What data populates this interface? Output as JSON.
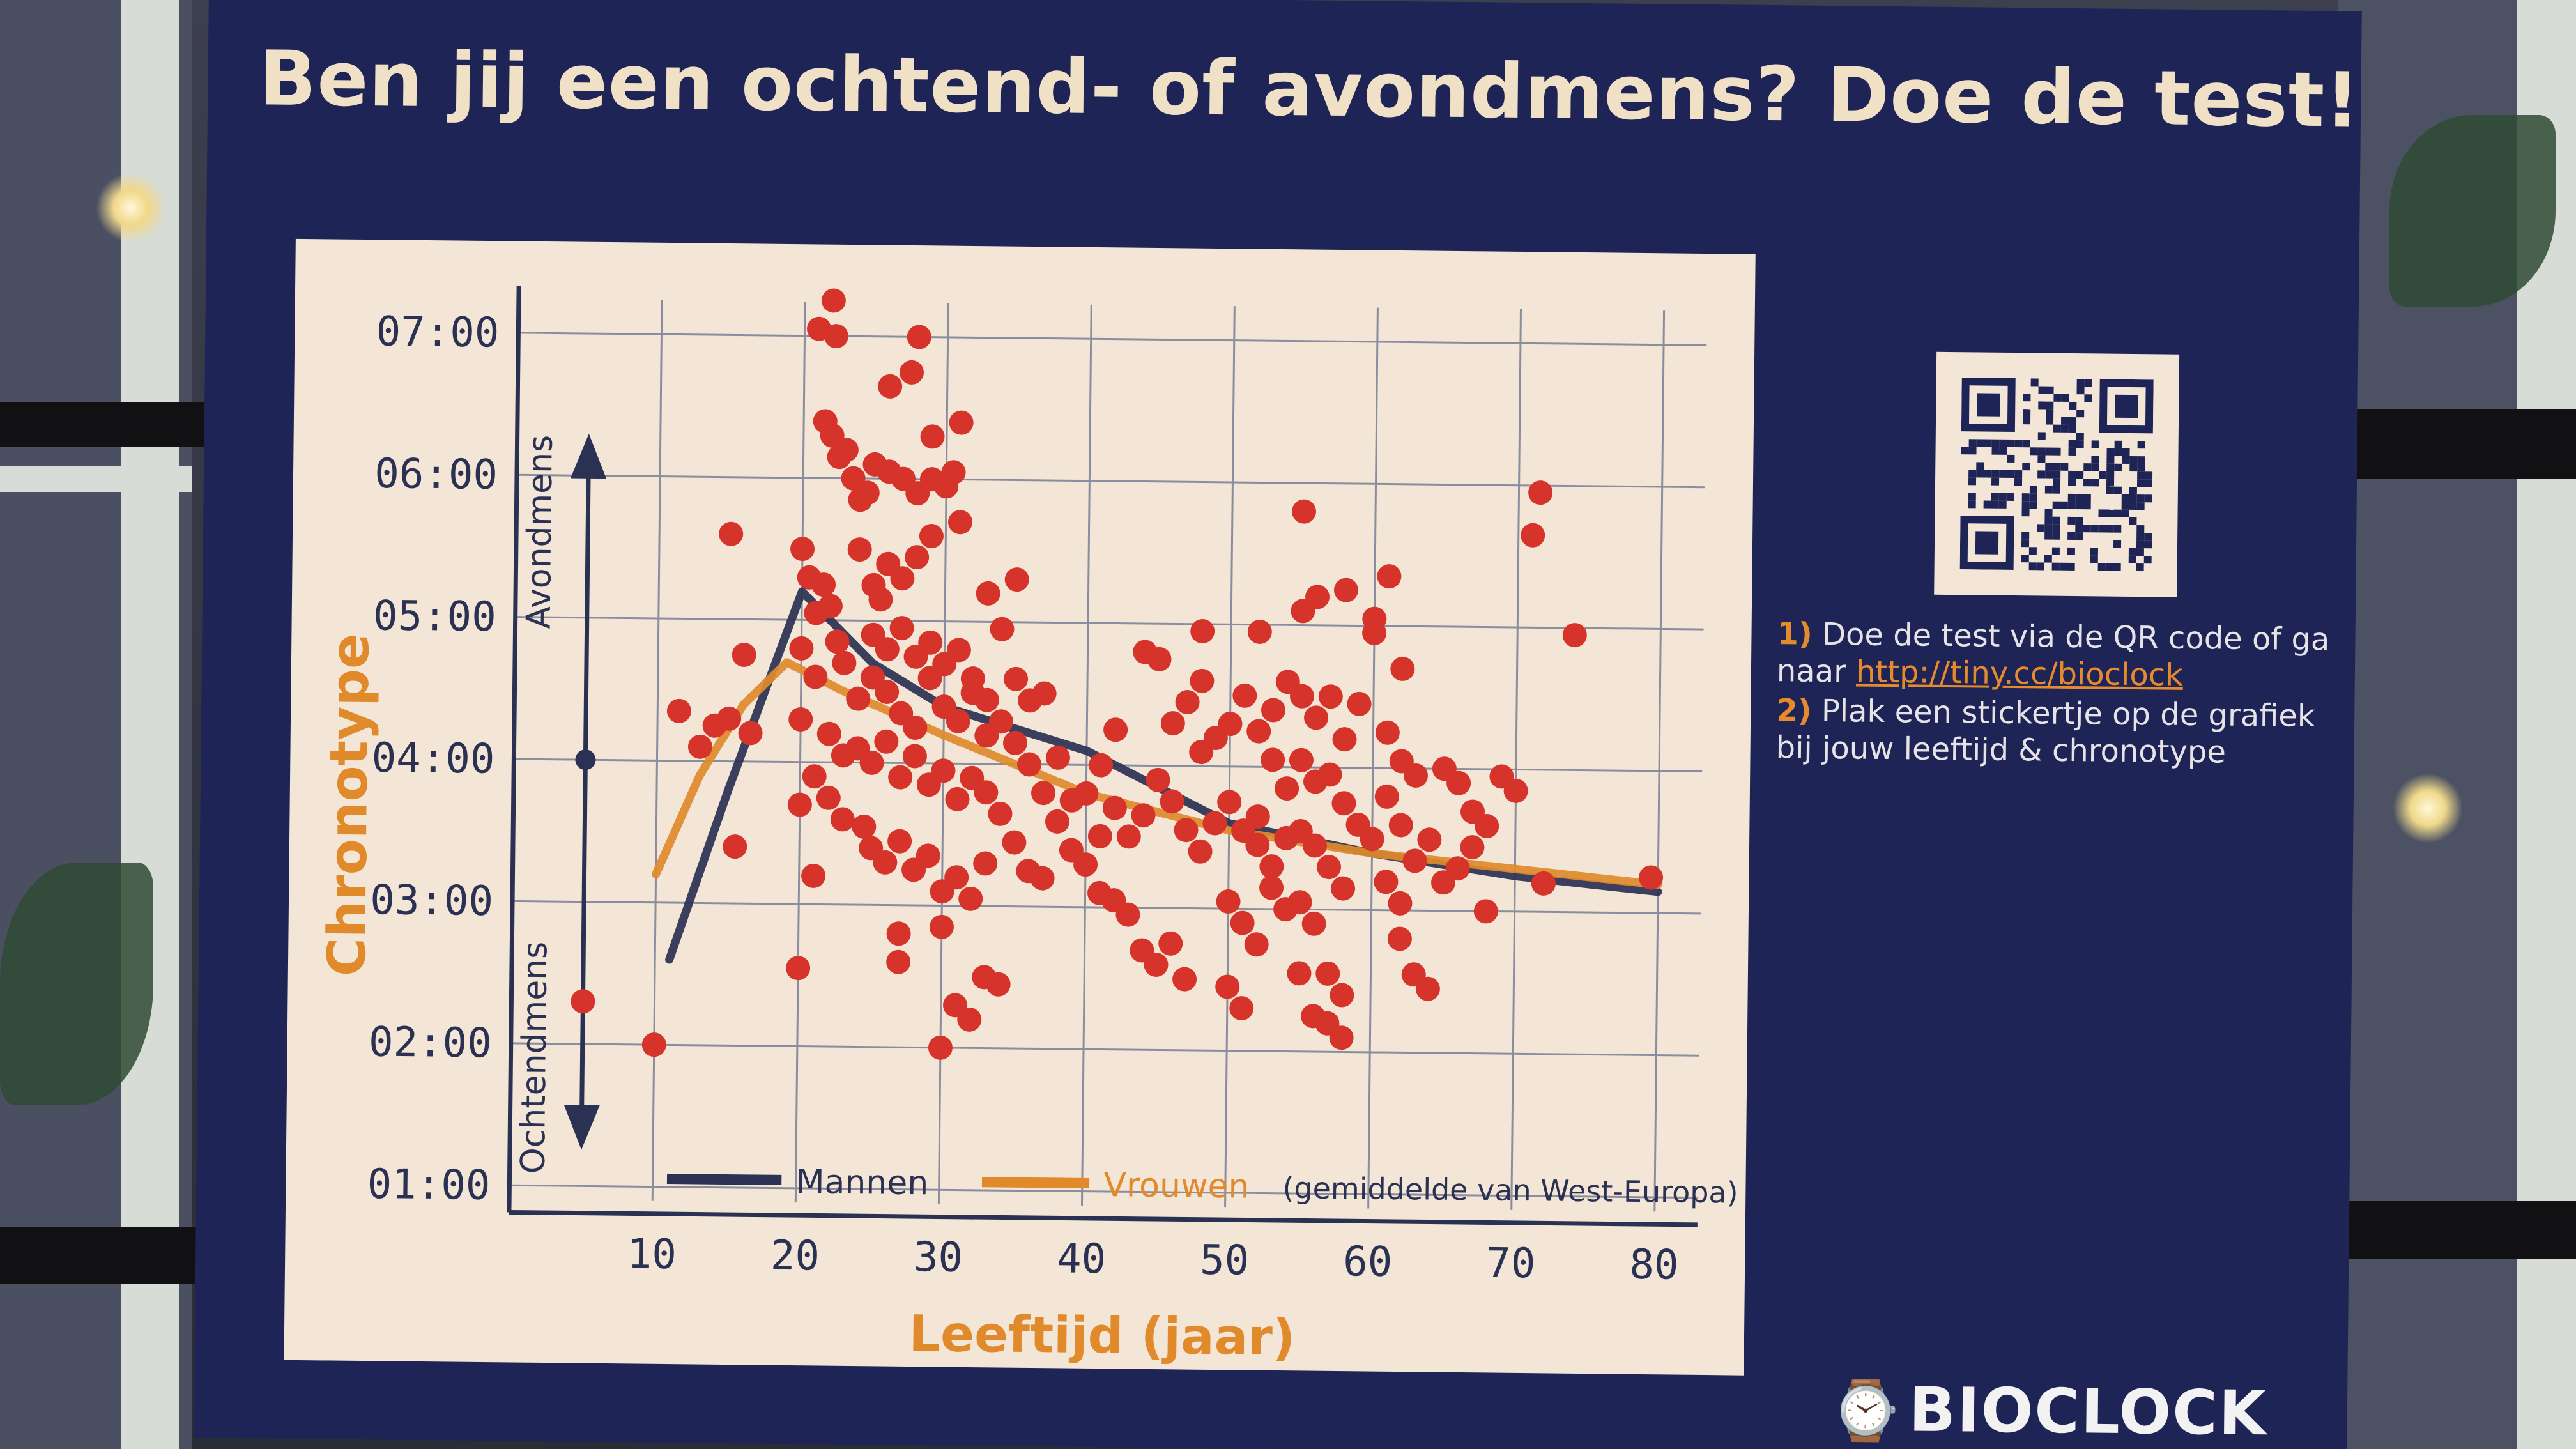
{
  "poster": {
    "title": "Ben jij een ochtend- of avondmens? Doe de test!",
    "steps": [
      {
        "num": "1)",
        "text": "Doe de test via de QR code of ga naar ",
        "link": "http://tiny.cc/bioclock"
      },
      {
        "num": "2)",
        "text": "Plak een stickertje op de grafiek bij jouw leeftijd & chronotype"
      }
    ],
    "brand": "BIOCLOCK"
  },
  "chart_data": {
    "type": "scatter",
    "xlabel": "Leeftijd (jaar)",
    "ylabel": "Chronotype",
    "xticks": [
      10,
      20,
      30,
      40,
      50,
      60,
      70,
      80
    ],
    "yticks": [
      "01:00",
      "02:00",
      "03:00",
      "04:00",
      "05:00",
      "06:00",
      "07:00"
    ],
    "xlim": [
      0,
      83
    ],
    "ylim": [
      0.9,
      7.15
    ],
    "arrow_labels": {
      "up": "Avondmens",
      "down": "Ochtendmens"
    },
    "legend": {
      "note": "(gemiddelde van West-Europa)"
    },
    "colors": {
      "men": "#2b3152",
      "women": "#e08a2b",
      "points": "#d6332a"
    },
    "series": [
      {
        "name": "Mannen",
        "x": [
          11,
          15,
          20,
          25,
          30,
          40,
          50,
          60,
          70,
          80
        ],
        "y": [
          2.6,
          3.8,
          5.2,
          4.7,
          4.4,
          4.1,
          3.6,
          3.4,
          3.25,
          3.15
        ]
      },
      {
        "name": "Vrouwen",
        "x": [
          10,
          13,
          16,
          19,
          23,
          30,
          40,
          50,
          60,
          70,
          80
        ],
        "y": [
          3.2,
          3.9,
          4.4,
          4.7,
          4.5,
          4.2,
          3.8,
          3.55,
          3.4,
          3.3,
          3.2
        ]
      }
    ],
    "points": [
      [
        10,
        2
      ],
      [
        5,
        2.3
      ],
      [
        11.5,
        4.35
      ],
      [
        13,
        4.1
      ],
      [
        14,
        4.25
      ],
      [
        15,
        4.3
      ],
      [
        15.5,
        3.4
      ],
      [
        16,
        4.75
      ],
      [
        16.5,
        4.2
      ],
      [
        15,
        5.6
      ],
      [
        20,
        5.5
      ],
      [
        20.5,
        5.3
      ],
      [
        21,
        5.05
      ],
      [
        21.5,
        5.25
      ],
      [
        22,
        5.1
      ],
      [
        22.5,
        4.85
      ],
      [
        23,
        4.7
      ],
      [
        22,
        7.25
      ],
      [
        21,
        7.05
      ],
      [
        22.2,
        7
      ],
      [
        21.5,
        6.4
      ],
      [
        22,
        6.3
      ],
      [
        23,
        6.2
      ],
      [
        22.5,
        6.15
      ],
      [
        23.5,
        6
      ],
      [
        24,
        5.85
      ],
      [
        25,
        6.1
      ],
      [
        24.5,
        5.9
      ],
      [
        26,
        6.05
      ],
      [
        27,
        6
      ],
      [
        28,
        5.9
      ],
      [
        29,
        6
      ],
      [
        30,
        5.95
      ],
      [
        30.5,
        6.05
      ],
      [
        26,
        6.65
      ],
      [
        27.5,
        6.75
      ],
      [
        28,
        7
      ],
      [
        29,
        6.3
      ],
      [
        31,
        6.4
      ],
      [
        27,
        5.3
      ],
      [
        26,
        5.4
      ],
      [
        28,
        5.45
      ],
      [
        29,
        5.6
      ],
      [
        24,
        5.5
      ],
      [
        25,
        5.25
      ],
      [
        25.5,
        5.15
      ],
      [
        31,
        5.7
      ],
      [
        33,
        5.2
      ],
      [
        35,
        5.3
      ],
      [
        34,
        4.95
      ],
      [
        20,
        4.8
      ],
      [
        21,
        4.6
      ],
      [
        20,
        4.3
      ],
      [
        22,
        4.2
      ],
      [
        23,
        4.05
      ],
      [
        24,
        4.1
      ],
      [
        21,
        3.9
      ],
      [
        20,
        3.7
      ],
      [
        22,
        3.75
      ],
      [
        23,
        3.6
      ],
      [
        24.5,
        3.55
      ],
      [
        25,
        3.4
      ],
      [
        26,
        3.3
      ],
      [
        27,
        3.45
      ],
      [
        28,
        3.25
      ],
      [
        29,
        3.35
      ],
      [
        30,
        3.1
      ],
      [
        31,
        3.2
      ],
      [
        32,
        3.05
      ],
      [
        33,
        3.3
      ],
      [
        24,
        4.45
      ],
      [
        25,
        4.6
      ],
      [
        26,
        4.5
      ],
      [
        27,
        4.35
      ],
      [
        28,
        4.25
      ],
      [
        29,
        4.6
      ],
      [
        30,
        4.4
      ],
      [
        31,
        4.3
      ],
      [
        32,
        4.5
      ],
      [
        33,
        4.2
      ],
      [
        25,
        4.9
      ],
      [
        26,
        4.8
      ],
      [
        27,
        4.95
      ],
      [
        28,
        4.75
      ],
      [
        29,
        4.85
      ],
      [
        30,
        4.7
      ],
      [
        31,
        4.8
      ],
      [
        32,
        4.6
      ],
      [
        33,
        4.45
      ],
      [
        34,
        4.3
      ],
      [
        25,
        4
      ],
      [
        26,
        4.15
      ],
      [
        27,
        3.9
      ],
      [
        28,
        4.05
      ],
      [
        29,
        3.85
      ],
      [
        30,
        3.95
      ],
      [
        31,
        3.75
      ],
      [
        32,
        3.9
      ],
      [
        33,
        3.8
      ],
      [
        34,
        3.65
      ],
      [
        35,
        4.6
      ],
      [
        36,
        4.45
      ],
      [
        37,
        4.5
      ],
      [
        35,
        4.15
      ],
      [
        36,
        4
      ],
      [
        37,
        3.8
      ],
      [
        38,
        3.6
      ],
      [
        39,
        3.4
      ],
      [
        35,
        3.45
      ],
      [
        36,
        3.25
      ],
      [
        21,
        3.2
      ],
      [
        20,
        2.55
      ],
      [
        27,
        2.6
      ],
      [
        27,
        2.8
      ],
      [
        30,
        2.85
      ],
      [
        31,
        2.3
      ],
      [
        30,
        2
      ],
      [
        33,
        2.5
      ],
      [
        34,
        2.45
      ],
      [
        32,
        2.2
      ],
      [
        40,
        3.8
      ],
      [
        41,
        4
      ],
      [
        42,
        3.7
      ],
      [
        43,
        3.5
      ],
      [
        44,
        3.65
      ],
      [
        45,
        3.9
      ],
      [
        46,
        3.75
      ],
      [
        47,
        3.55
      ],
      [
        48,
        3.4
      ],
      [
        40,
        3.3
      ],
      [
        41,
        3.1
      ],
      [
        42,
        3.05
      ],
      [
        43,
        2.95
      ],
      [
        44,
        2.7
      ],
      [
        45,
        2.6
      ],
      [
        46,
        2.75
      ],
      [
        47,
        2.5
      ],
      [
        44,
        4.8
      ],
      [
        45,
        4.75
      ],
      [
        48,
        4.6
      ],
      [
        46,
        4.3
      ],
      [
        47,
        4.45
      ],
      [
        48,
        4.1
      ],
      [
        49,
        4.2
      ],
      [
        50,
        4.3
      ],
      [
        51,
        4.5
      ],
      [
        52,
        4.25
      ],
      [
        53,
        4.4
      ],
      [
        54,
        4.6
      ],
      [
        49,
        3.6
      ],
      [
        50,
        3.75
      ],
      [
        51,
        3.55
      ],
      [
        52,
        3.45
      ],
      [
        53,
        3.3
      ],
      [
        54,
        3.5
      ],
      [
        50,
        3.05
      ],
      [
        51,
        2.9
      ],
      [
        52,
        2.75
      ],
      [
        50,
        2.45
      ],
      [
        51,
        2.3
      ],
      [
        55,
        5.8
      ],
      [
        56,
        5.2
      ],
      [
        55,
        4.5
      ],
      [
        56,
        4.35
      ],
      [
        57,
        4.5
      ],
      [
        58,
        4.2
      ],
      [
        59,
        4.45
      ],
      [
        55,
        4.05
      ],
      [
        56,
        3.9
      ],
      [
        57,
        3.95
      ],
      [
        58,
        3.75
      ],
      [
        59,
        3.6
      ],
      [
        55,
        3.55
      ],
      [
        56,
        3.45
      ],
      [
        57,
        3.3
      ],
      [
        58,
        3.15
      ],
      [
        55,
        3.05
      ],
      [
        56,
        2.9
      ],
      [
        57,
        2.55
      ],
      [
        58,
        2.4
      ],
      [
        57,
        2.2
      ],
      [
        56,
        2.25
      ],
      [
        58,
        2.1
      ],
      [
        55,
        2.55
      ],
      [
        54,
        3
      ],
      [
        53,
        3.15
      ],
      [
        52,
        3.65
      ],
      [
        54,
        3.85
      ],
      [
        53,
        4.05
      ],
      [
        52,
        4.95
      ],
      [
        60,
        4.95
      ],
      [
        61,
        5.35
      ],
      [
        62,
        4.7
      ],
      [
        61,
        4.25
      ],
      [
        62,
        4.05
      ],
      [
        63,
        3.95
      ],
      [
        61,
        3.8
      ],
      [
        62,
        3.6
      ],
      [
        63,
        3.35
      ],
      [
        64,
        3.5
      ],
      [
        60,
        3.5
      ],
      [
        61,
        3.2
      ],
      [
        62,
        3.05
      ],
      [
        63,
        2.55
      ],
      [
        62,
        2.8
      ],
      [
        64,
        2.45
      ],
      [
        65,
        4
      ],
      [
        66,
        3.9
      ],
      [
        67,
        3.7
      ],
      [
        68,
        3.6
      ],
      [
        66,
        3.3
      ],
      [
        67,
        3.45
      ],
      [
        69,
        3.95
      ],
      [
        70,
        3.85
      ],
      [
        65,
        3.2
      ],
      [
        68,
        3
      ],
      [
        71,
        5.65
      ],
      [
        71.5,
        5.95
      ],
      [
        74,
        4.95
      ],
      [
        72,
        3.2
      ],
      [
        79.5,
        3.25
      ],
      [
        58,
        5.25
      ],
      [
        55,
        5.1
      ],
      [
        60,
        5.05
      ],
      [
        48,
        4.95
      ],
      [
        42,
        4.25
      ],
      [
        41,
        3.5
      ],
      [
        39,
        3.75
      ],
      [
        38,
        4.05
      ],
      [
        37,
        3.2
      ]
    ]
  }
}
